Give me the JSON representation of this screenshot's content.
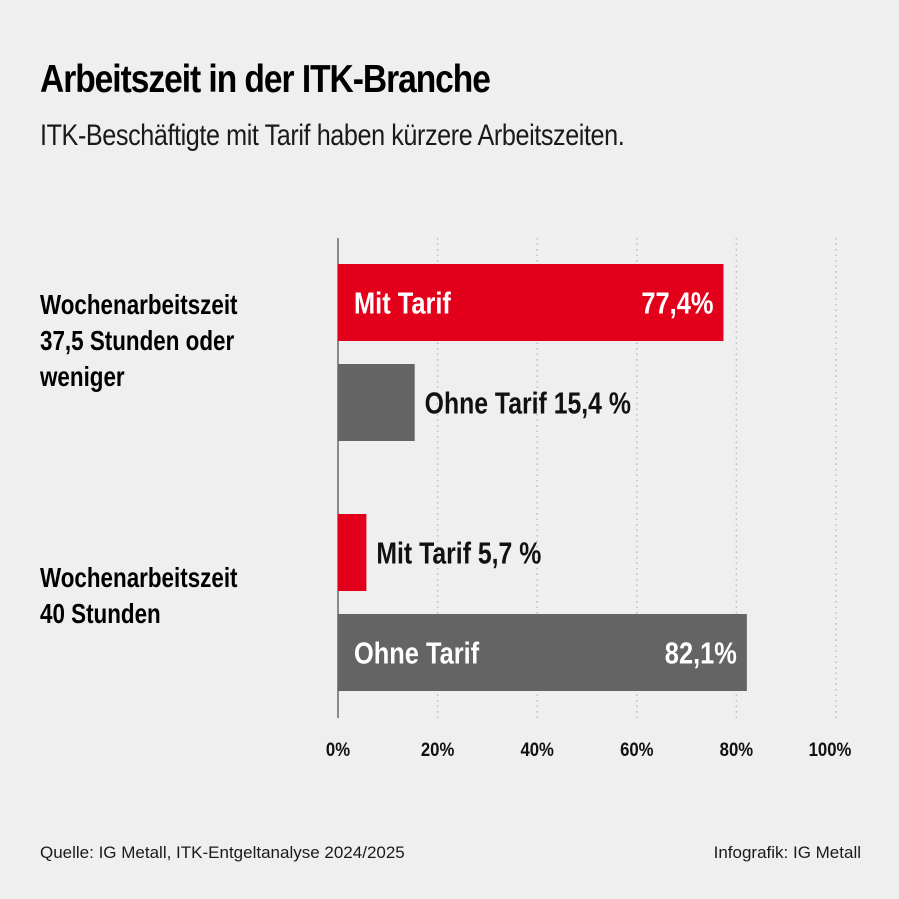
{
  "title": "Arbeitszeit in der ITK-Branche",
  "subtitle": "ITK-Beschäftigte mit Tarif haben kürzere Arbeitszeiten.",
  "source": "Quelle: IG Metall, ITK-Entgeltanalyse 2024/2025",
  "credit": "Infografik: IG Metall",
  "colors": {
    "mit_tarif": "#e2001a",
    "ohne_tarif": "#646464",
    "background": "#efefef",
    "grid": "#bdbdbd"
  },
  "chart_data": {
    "type": "bar",
    "orientation": "horizontal",
    "title": "Arbeitszeit in der ITK-Branche",
    "subtitle": "ITK-Beschäftigte mit Tarif haben kürzere Arbeitszeiten.",
    "xlim": [
      0,
      100
    ],
    "x_ticks": [
      "0%",
      "20%",
      "40%",
      "60%",
      "80%",
      "100%"
    ],
    "x_tick_values": [
      0,
      20,
      40,
      60,
      80,
      100
    ],
    "grid": true,
    "categories": [
      {
        "label_lines": [
          "Wochenarbeitszeit",
          "37,5 Stunden oder",
          "weniger"
        ],
        "bars": [
          {
            "series": "Mit Tarif",
            "value": 77.4,
            "label": "Mit Tarif",
            "value_label": "77,4%",
            "label_inside": true
          },
          {
            "series": "Ohne Tarif",
            "value": 15.4,
            "label": "Ohne Tarif 15,4 %",
            "label_inside": false
          }
        ]
      },
      {
        "label_lines": [
          "Wochenarbeitszeit",
          "40 Stunden"
        ],
        "bars": [
          {
            "series": "Mit Tarif",
            "value": 5.7,
            "label": "Mit Tarif 5,7 %",
            "label_inside": false
          },
          {
            "series": "Ohne Tarif",
            "value": 82.1,
            "label": "Ohne Tarif",
            "value_label": "82,1%",
            "label_inside": true
          }
        ]
      }
    ]
  }
}
